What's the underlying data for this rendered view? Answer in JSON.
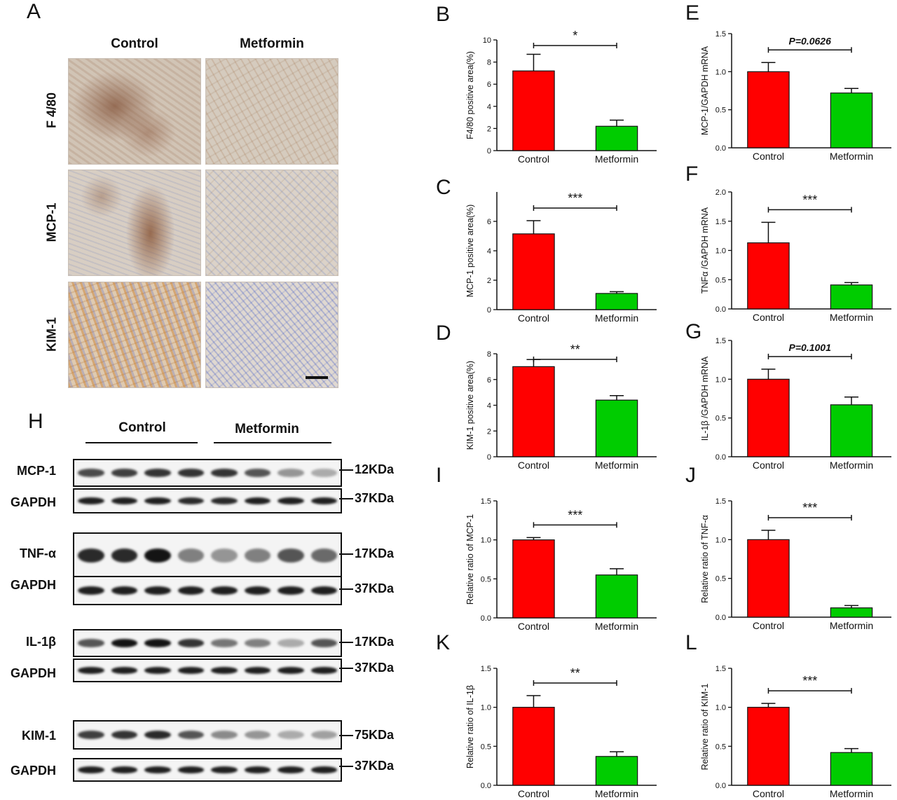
{
  "ihc": {
    "letter": "A",
    "columns": [
      "Control",
      "Metformin"
    ],
    "rows": [
      "F 4/80",
      "MCP-1",
      "KIM-1"
    ]
  },
  "western": {
    "letter": "H",
    "groups": [
      "Control",
      "Metformin"
    ],
    "blots": [
      {
        "label": "MCP-1",
        "kda": "12KDa",
        "intensity": [
          0.75,
          0.8,
          0.85,
          0.85,
          0.85,
          0.7,
          0.4,
          0.3
        ]
      },
      {
        "label": "GAPDH",
        "kda": "37KDa",
        "intensity": [
          0.95,
          0.95,
          0.95,
          0.9,
          0.9,
          0.95,
          0.95,
          0.95
        ]
      },
      {
        "label": "TNF-α",
        "kda": "17KDa",
        "intensity": [
          0.9,
          0.9,
          1.0,
          0.5,
          0.4,
          0.5,
          0.7,
          0.6
        ]
      },
      {
        "label": "GAPDH",
        "kda": "37KDa",
        "intensity": [
          0.95,
          0.95,
          0.95,
          0.95,
          0.95,
          0.95,
          0.95,
          0.95
        ]
      },
      {
        "label": "IL-1β",
        "kda": "17KDa",
        "intensity": [
          0.7,
          1.0,
          1.0,
          0.85,
          0.55,
          0.5,
          0.3,
          0.7
        ]
      },
      {
        "label": "GAPDH",
        "kda": "37KDa",
        "intensity": [
          0.95,
          0.95,
          0.95,
          0.95,
          0.95,
          0.95,
          0.95,
          0.95
        ]
      },
      {
        "label": "KIM-1",
        "kda": "75KDa",
        "intensity": [
          0.8,
          0.85,
          0.9,
          0.7,
          0.45,
          0.4,
          0.3,
          0.35
        ]
      },
      {
        "label": "GAPDH",
        "kda": "37KDa",
        "intensity": [
          0.95,
          0.95,
          0.95,
          0.95,
          0.95,
          0.95,
          0.95,
          0.95
        ]
      }
    ]
  },
  "colors": {
    "control": "#ff0000",
    "metformin": "#00cc00",
    "axis": "#111111"
  },
  "chart_data": [
    {
      "id": "B",
      "type": "bar",
      "categories": [
        "Control",
        "Metformin"
      ],
      "values": [
        7.2,
        2.2
      ],
      "errors": [
        1.5,
        0.55
      ],
      "ylabel": "F4/80 positive area(%)",
      "ylim": [
        0,
        10
      ],
      "yticks": [
        0,
        2,
        4,
        6,
        8,
        10
      ],
      "significance": "*"
    },
    {
      "id": "C",
      "type": "bar",
      "categories": [
        "Control",
        "Metformin"
      ],
      "values": [
        5.15,
        1.1
      ],
      "errors": [
        0.9,
        0.12
      ],
      "ylabel": "MCP-1 positive area(%)",
      "ylim": [
        0,
        8
      ],
      "yticks": [
        0,
        2,
        4,
        6
      ],
      "significance": "***"
    },
    {
      "id": "D",
      "type": "bar",
      "categories": [
        "Control",
        "Metformin"
      ],
      "values": [
        7.0,
        4.4
      ],
      "errors": [
        0.55,
        0.35
      ],
      "ylabel": "KIM-1 positive area(%)",
      "ylim": [
        0,
        8
      ],
      "yticks": [
        0,
        2,
        4,
        6,
        8
      ],
      "significance": "**"
    },
    {
      "id": "E",
      "type": "bar",
      "categories": [
        "Control",
        "Metformin"
      ],
      "values": [
        1.0,
        0.72
      ],
      "errors": [
        0.12,
        0.06
      ],
      "ylabel": "MCP-1/GAPDH mRNA",
      "ylim": [
        0,
        1.5
      ],
      "yticks": [
        0.0,
        0.5,
        1.0,
        1.5
      ],
      "significance": "P=0.0626"
    },
    {
      "id": "F",
      "type": "bar",
      "categories": [
        "Control",
        "Metformin"
      ],
      "values": [
        1.13,
        0.41
      ],
      "errors": [
        0.35,
        0.04
      ],
      "ylabel": "TNFα /GAPDH mRNA",
      "ylim": [
        0,
        2.0
      ],
      "yticks": [
        0.0,
        0.5,
        1.0,
        1.5,
        2.0
      ],
      "significance": "***"
    },
    {
      "id": "G",
      "type": "bar",
      "categories": [
        "Control",
        "Metformin"
      ],
      "values": [
        1.0,
        0.67
      ],
      "errors": [
        0.13,
        0.1
      ],
      "ylabel": "IL-1β /GAPDH mRNA",
      "ylim": [
        0,
        1.5
      ],
      "yticks": [
        0.0,
        0.5,
        1.0,
        1.5
      ],
      "significance": "P=0.1001"
    },
    {
      "id": "I",
      "type": "bar",
      "categories": [
        "Control",
        "Metformin"
      ],
      "values": [
        1.0,
        0.55
      ],
      "errors": [
        0.03,
        0.08
      ],
      "ylabel": "Relative ratio of MCP-1",
      "ylim": [
        0,
        1.5
      ],
      "yticks": [
        0.0,
        0.5,
        1.0,
        1.5
      ],
      "significance": "***"
    },
    {
      "id": "J",
      "type": "bar",
      "categories": [
        "Control",
        "Metformin"
      ],
      "values": [
        1.0,
        0.12
      ],
      "errors": [
        0.12,
        0.03
      ],
      "ylabel": "Relative ratio of TNF-α",
      "ylim": [
        0,
        1.5
      ],
      "yticks": [
        0.0,
        0.5,
        1.0,
        1.5
      ],
      "significance": "***"
    },
    {
      "id": "K",
      "type": "bar",
      "categories": [
        "Control",
        "Metformin"
      ],
      "values": [
        1.0,
        0.37
      ],
      "errors": [
        0.15,
        0.06
      ],
      "ylabel": "Relative ratio of IL-1β",
      "ylim": [
        0,
        1.5
      ],
      "yticks": [
        0.0,
        0.5,
        1.0,
        1.5
      ],
      "significance": "**"
    },
    {
      "id": "L",
      "type": "bar",
      "categories": [
        "Control",
        "Metformin"
      ],
      "values": [
        1.0,
        0.42
      ],
      "errors": [
        0.05,
        0.05
      ],
      "ylabel": "Relative ratio of KIM-1",
      "ylim": [
        0,
        1.5
      ],
      "yticks": [
        0.0,
        0.5,
        1.0,
        1.5
      ],
      "significance": "***"
    }
  ]
}
